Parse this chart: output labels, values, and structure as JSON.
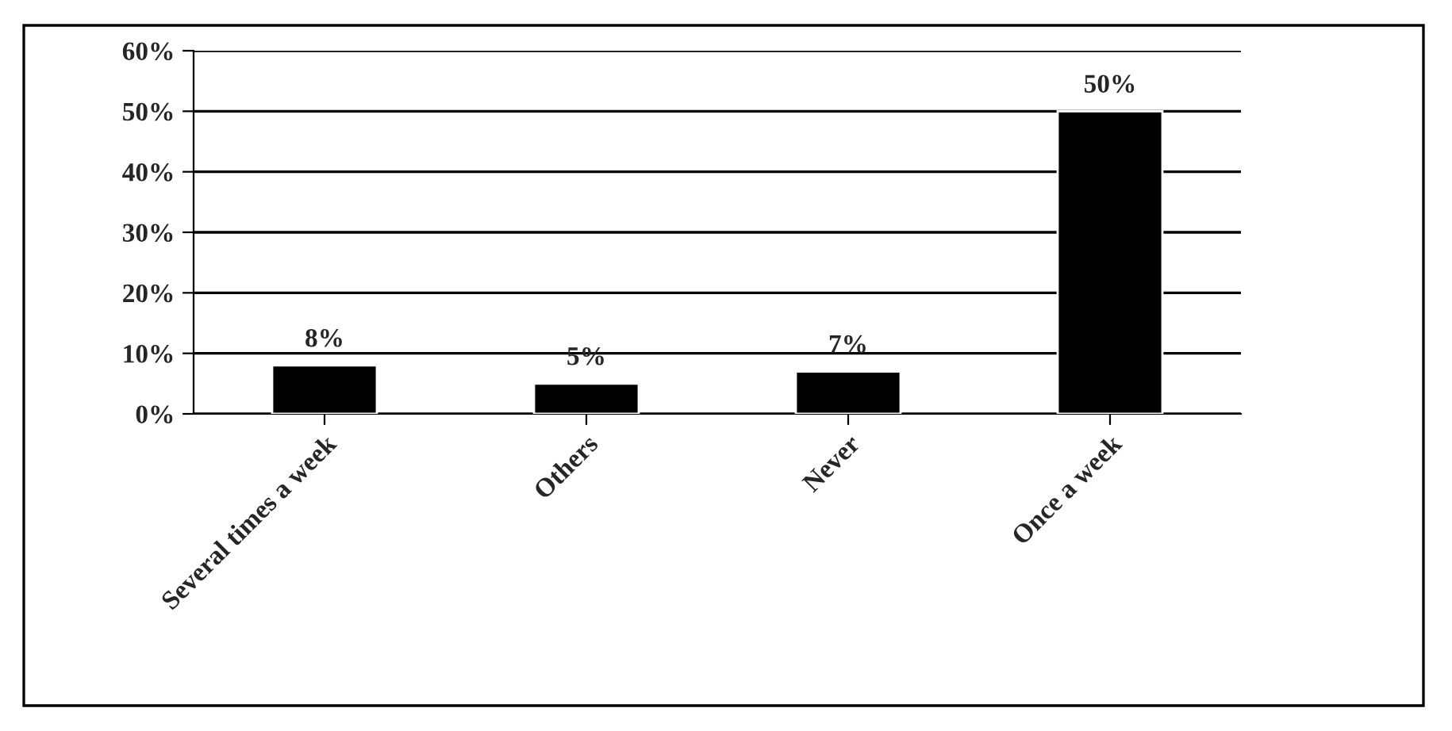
{
  "chart_data": {
    "type": "bar",
    "categories": [
      "Several times a week",
      "Others",
      "Never",
      "Once a week"
    ],
    "values": [
      8,
      5,
      7,
      50
    ],
    "color": "#000000",
    "value_labels": [
      "8%",
      "5%",
      "7%",
      "50%"
    ],
    "ylim": [
      0,
      60
    ],
    "yticks": [
      {
        "value": 0,
        "label": "0%"
      },
      {
        "value": 10,
        "label": "10%"
      },
      {
        "value": 20,
        "label": "20%"
      },
      {
        "value": 30,
        "label": "30%"
      },
      {
        "value": 40,
        "label": "40%"
      },
      {
        "value": 50,
        "label": "50%"
      },
      {
        "value": 60,
        "label": "60%"
      }
    ],
    "grid": "y",
    "legend": false
  }
}
